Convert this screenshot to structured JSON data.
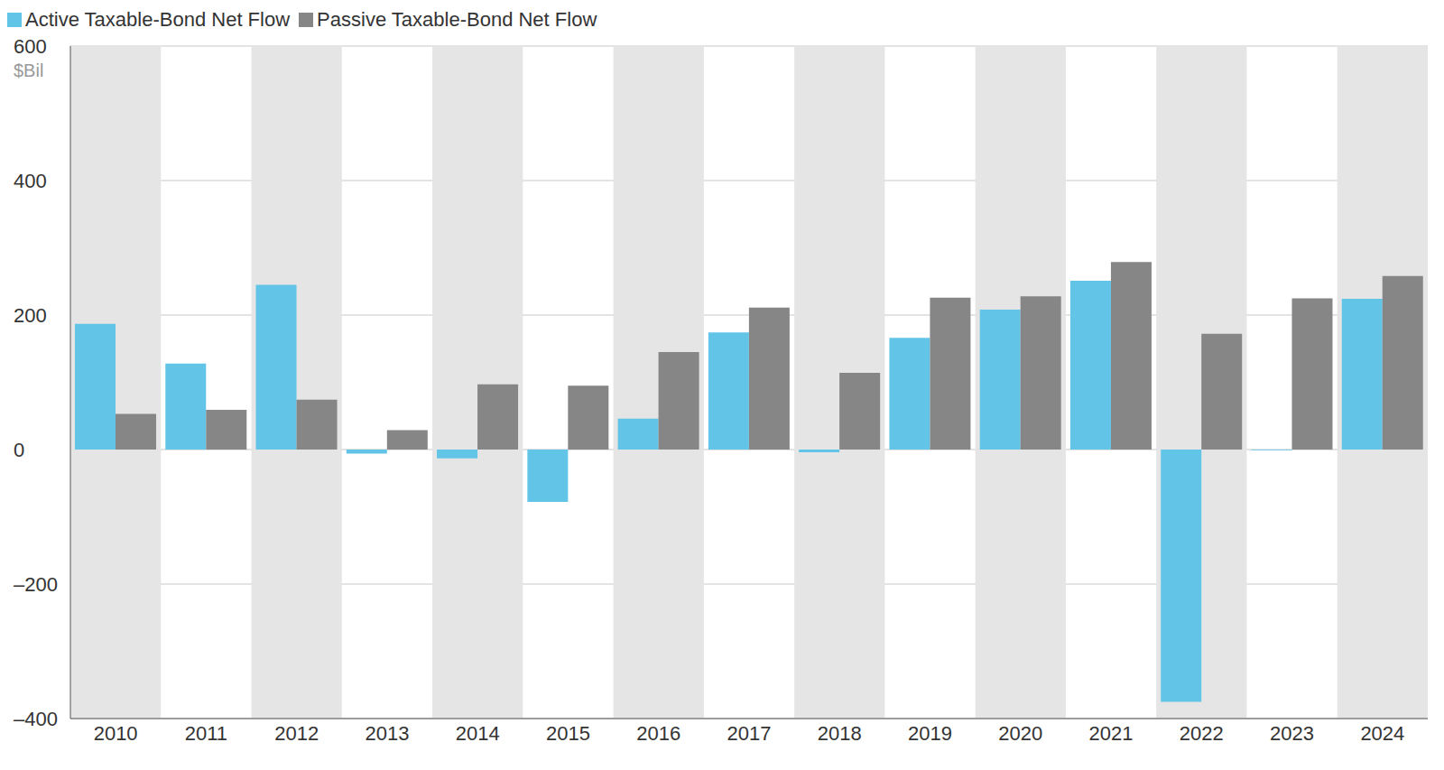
{
  "chart_data": {
    "type": "bar",
    "ylabel": "$Bil",
    "categories": [
      "2010",
      "2011",
      "2012",
      "2013",
      "2014",
      "2015",
      "2016",
      "2017",
      "2018",
      "2019",
      "2020",
      "2021",
      "2022",
      "2023",
      "2024"
    ],
    "series": [
      {
        "name": "Active Taxable-Bond Net Flow",
        "color": "#62c5e8",
        "values": [
          187,
          128,
          245,
          -6,
          -13,
          -78,
          46,
          174,
          -4,
          166,
          208,
          251,
          -375,
          -1,
          224
        ]
      },
      {
        "name": "Passive Taxable-Bond Net Flow",
        "color": "#868686",
        "values": [
          53,
          59,
          74,
          29,
          97,
          95,
          145,
          211,
          114,
          226,
          228,
          279,
          172,
          225,
          258
        ]
      }
    ],
    "ylim": [
      -400,
      600
    ],
    "yticks": [
      {
        "value": -400,
        "label": "–400"
      },
      {
        "value": -200,
        "label": "–200"
      },
      0,
      200,
      400,
      600
    ],
    "grid": true,
    "legend": "top-left"
  }
}
